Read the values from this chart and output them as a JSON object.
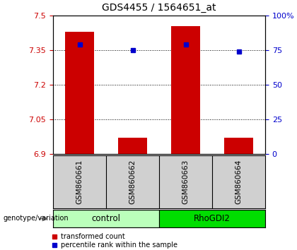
{
  "title": "GDS4455 / 1564651_at",
  "samples": [
    "GSM860661",
    "GSM860662",
    "GSM860663",
    "GSM860664"
  ],
  "transformed_counts": [
    7.43,
    6.97,
    7.455,
    6.97
  ],
  "percentile_ranks": [
    79,
    75,
    79,
    74
  ],
  "ylim_left": [
    6.9,
    7.5
  ],
  "ylim_right": [
    0,
    100
  ],
  "yticks_left": [
    6.9,
    7.05,
    7.2,
    7.35,
    7.5
  ],
  "yticks_right": [
    0,
    25,
    50,
    75,
    100
  ],
  "ytick_labels_left": [
    "6.9",
    "7.05",
    "7.2",
    "7.35",
    "7.5"
  ],
  "ytick_labels_right": [
    "0",
    "25",
    "50",
    "75",
    "100%"
  ],
  "hlines": [
    7.05,
    7.2,
    7.35
  ],
  "bar_color": "#cc0000",
  "dot_color": "#0000cc",
  "bar_width": 0.55,
  "groups": [
    {
      "label": "control",
      "samples": [
        0,
        1
      ],
      "color": "#bbffbb",
      "edge_color": "#33cc33"
    },
    {
      "label": "RhoGDI2",
      "samples": [
        2,
        3
      ],
      "color": "#00dd00",
      "edge_color": "#33cc33"
    }
  ],
  "genotype_label": "genotype/variation",
  "legend_items": [
    {
      "color": "#cc0000",
      "label": "transformed count"
    },
    {
      "color": "#0000cc",
      "label": "percentile rank within the sample"
    }
  ],
  "plot_bg": "#ffffff",
  "axis_bg": "#ffffff",
  "tick_color_left": "#cc0000",
  "tick_color_right": "#0000cc",
  "sample_box_bg": "#d0d0d0"
}
